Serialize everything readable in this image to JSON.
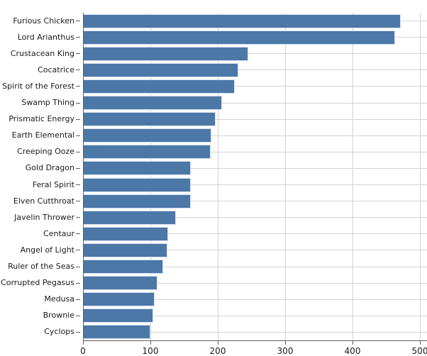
{
  "chart_data": {
    "type": "bar",
    "orientation": "horizontal",
    "title": "",
    "xlabel": "",
    "ylabel": "",
    "categories": [
      "Furious Chicken",
      "Lord Arianthus",
      "Crustacean King",
      "Cocatrice",
      "Spirit of the Forest",
      "Swamp Thing",
      "Prismatic Energy",
      "Earth Elemental",
      "Creeping Ooze",
      "Gold Dragon",
      "Feral Spirit",
      "Elven Cutthroat",
      "Javelin Thrower",
      "Centaur",
      "Angel of Light",
      "Ruler of the Seas",
      "Corrupted Pegasus",
      "Medusa",
      "Brownie",
      "Cyclops"
    ],
    "values": [
      472,
      463,
      245,
      230,
      225,
      206,
      197,
      190,
      189,
      160,
      160,
      160,
      138,
      126,
      125,
      119,
      111,
      106,
      104,
      100
    ],
    "x_ticks": [
      0,
      100,
      200,
      300,
      400,
      500
    ],
    "xlim": [
      0,
      510
    ],
    "grid": "both",
    "legend": "none",
    "sort": "descending",
    "colors": {
      "bar_fill": "#4c78a8",
      "bar_edge": "#d2e0ef",
      "gridline": "#d3d3d3",
      "axis": "#5f5f5f",
      "label_text": "#1a1a1a"
    }
  }
}
